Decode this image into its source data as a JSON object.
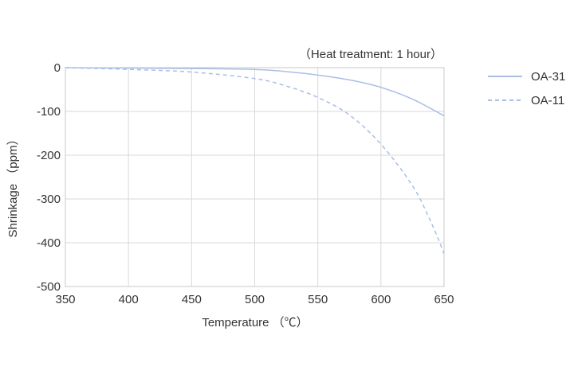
{
  "chart_data": {
    "type": "line",
    "title": "",
    "annotation": "（Heat treatment: 1 hour）",
    "xlabel": "Temperature （℃）",
    "ylabel": "Shrinkage （ppm）",
    "xlim": [
      350,
      650
    ],
    "ylim": [
      -500,
      0
    ],
    "xticks": [
      350,
      400,
      450,
      500,
      550,
      600,
      650
    ],
    "yticks": [
      0,
      -100,
      -200,
      -300,
      -400,
      -500
    ],
    "grid": true,
    "legend_position": "right",
    "series": [
      {
        "name": "OA-31",
        "style": "solid",
        "color": "#a9bfe6",
        "x": [
          350,
          400,
          450,
          500,
          525,
          550,
          575,
          600,
          625,
          650
        ],
        "y": [
          0,
          -1,
          -2,
          -4,
          -9,
          -17,
          -28,
          -45,
          -72,
          -110
        ]
      },
      {
        "name": "OA-11",
        "style": "dashed",
        "color": "#a9bfe6",
        "x": [
          350,
          400,
          450,
          500,
          525,
          550,
          575,
          600,
          625,
          640,
          650
        ],
        "y": [
          0,
          -4,
          -10,
          -25,
          -42,
          -68,
          -108,
          -175,
          -270,
          -355,
          -425
        ]
      }
    ]
  }
}
